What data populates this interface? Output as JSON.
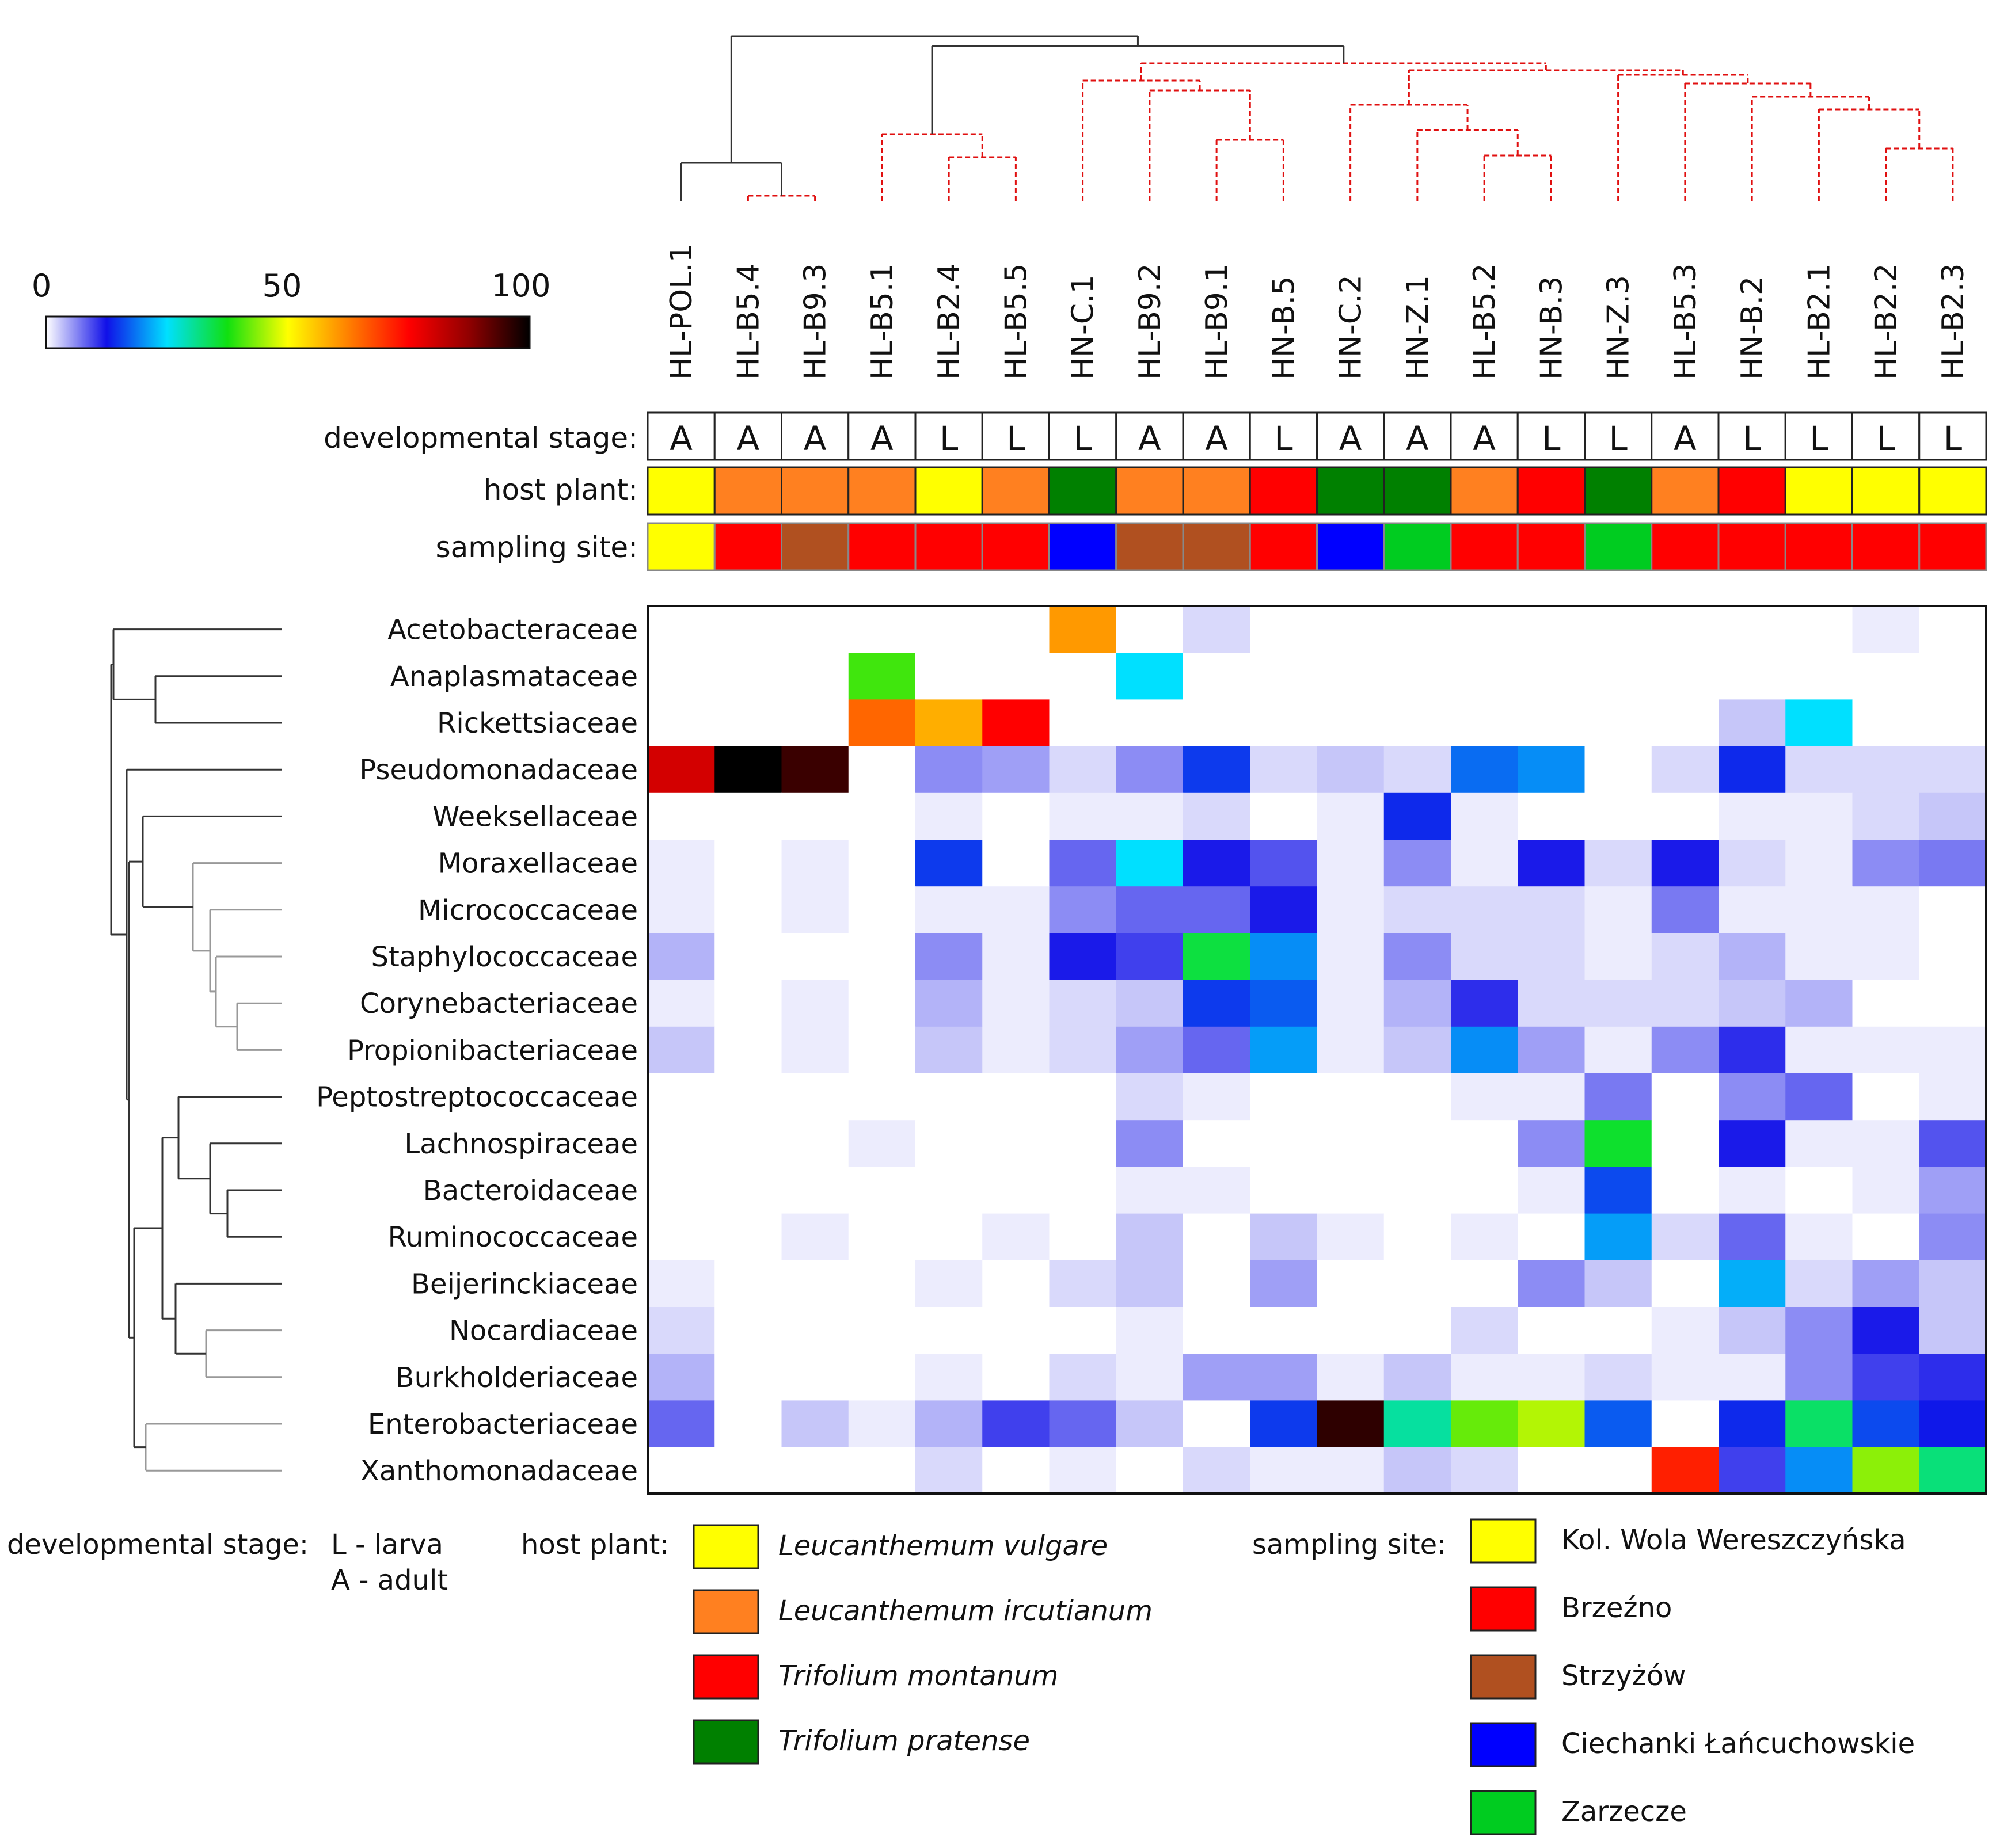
{
  "colors": {
    "scale": [
      "#ffffff",
      "#1010e8",
      "#00e0ff",
      "#10e010",
      "#ffff00",
      "#ff8000",
      "#ff0000",
      "#900000",
      "#000000"
    ],
    "dendrogram_black": "#333333",
    "dendrogram_red": "#e01010",
    "row_dendrogram": "#333333"
  },
  "chart_data": {
    "type": "heatmap",
    "title": "",
    "color_scale": {
      "min": 0,
      "max": 100,
      "tick_labels": [
        "0",
        "50",
        "100"
      ],
      "ticks": [
        0,
        50,
        100
      ]
    },
    "columns": [
      "HL-POL.1",
      "HL-B5.4",
      "HL-B9.3",
      "HL-B5.1",
      "HL-B2.4",
      "HL-B5.5",
      "HN-C.1",
      "HL-B9.2",
      "HL-B9.1",
      "HN-B.5",
      "HN-C.2",
      "HN-Z.1",
      "HL-B5.2",
      "HN-B.3",
      "HN-Z.3",
      "HL-B5.3",
      "HN-B.2",
      "HL-B2.1",
      "HL-B2.2",
      "HL-B2.3"
    ],
    "rows": [
      "Acetobacteraceae",
      "Anaplasmataceae",
      "Rickettsiaceae",
      "Pseudomonadaceae",
      "Weeksellaceae",
      "Moraxellaceae",
      "Micrococcaceae",
      "Staphylococcaceae",
      "Corynebacteriaceae",
      "Propionibacteriaceae",
      "Peptostreptococcaceae",
      "Lachnospiraceae",
      "Bacteroidaceae",
      "Ruminococcaceae",
      "Beijerinckiaceae",
      "Nocardiaceae",
      "Burkholderiaceae",
      "Enterobacteriaceae",
      "Xanthomonadaceae"
    ],
    "values": [
      [
        0,
        0,
        0,
        0,
        0,
        0,
        60,
        0,
        2,
        0,
        0,
        0,
        0,
        0,
        0,
        0,
        0,
        0,
        1,
        0
      ],
      [
        0,
        0,
        0,
        40,
        0,
        0,
        0,
        25,
        0,
        0,
        0,
        0,
        0,
        0,
        0,
        0,
        0,
        0,
        0,
        0
      ],
      [
        0,
        0,
        0,
        65,
        58,
        75,
        0,
        0,
        0,
        0,
        0,
        0,
        0,
        0,
        0,
        0,
        3,
        25,
        0,
        0
      ],
      [
        80,
        100,
        95,
        0,
        6,
        5,
        2,
        6,
        15,
        2,
        3,
        2,
        18,
        20,
        0,
        2,
        14,
        2,
        2,
        2
      ],
      [
        0,
        0,
        0,
        0,
        1,
        0,
        1,
        1,
        2,
        0,
        1,
        14,
        1,
        0,
        0,
        0,
        1,
        1,
        2,
        3
      ],
      [
        1,
        0,
        1,
        0,
        15,
        0,
        8,
        25,
        12,
        9,
        1,
        6,
        1,
        12,
        2,
        12,
        2,
        1,
        6,
        7
      ],
      [
        1,
        0,
        1,
        0,
        1,
        1,
        6,
        8,
        8,
        12,
        1,
        2,
        2,
        2,
        1,
        7,
        1,
        1,
        1,
        0
      ],
      [
        4,
        0,
        0,
        0,
        6,
        1,
        12,
        10,
        35,
        20,
        1,
        6,
        2,
        2,
        1,
        2,
        4,
        1,
        1,
        0
      ],
      [
        1,
        0,
        1,
        0,
        4,
        1,
        2,
        3,
        15,
        17,
        1,
        4,
        11,
        2,
        2,
        2,
        3,
        4,
        0,
        0
      ],
      [
        3,
        0,
        1,
        0,
        3,
        1,
        2,
        5,
        8,
        21,
        1,
        3,
        20,
        5,
        1,
        6,
        11,
        1,
        1,
        1
      ],
      [
        0,
        0,
        0,
        0,
        0,
        0,
        0,
        2,
        1,
        0,
        0,
        0,
        1,
        1,
        7,
        0,
        6,
        8,
        0,
        1
      ],
      [
        0,
        0,
        0,
        1,
        0,
        0,
        0,
        6,
        0,
        0,
        0,
        0,
        0,
        6,
        36,
        0,
        12,
        1,
        1,
        9
      ],
      [
        0,
        0,
        0,
        0,
        0,
        0,
        0,
        1,
        1,
        0,
        0,
        0,
        0,
        1,
        16,
        0,
        1,
        0,
        1,
        5
      ],
      [
        0,
        0,
        1,
        0,
        0,
        1,
        0,
        3,
        0,
        3,
        1,
        0,
        1,
        0,
        21,
        2,
        8,
        1,
        0,
        6
      ],
      [
        1,
        0,
        0,
        0,
        1,
        0,
        2,
        3,
        0,
        5,
        0,
        0,
        0,
        6,
        3,
        0,
        22,
        2,
        5,
        3
      ],
      [
        2,
        0,
        0,
        0,
        0,
        0,
        0,
        1,
        0,
        0,
        0,
        0,
        2,
        0,
        0,
        1,
        3,
        6,
        12,
        3
      ],
      [
        4,
        0,
        0,
        0,
        1,
        0,
        2,
        1,
        5,
        5,
        1,
        3,
        1,
        1,
        2,
        1,
        1,
        6,
        10,
        11
      ],
      [
        8,
        0,
        3,
        1,
        4,
        10,
        8,
        3,
        0,
        15,
        96,
        30,
        42,
        46,
        17,
        0,
        14,
        33,
        16,
        13
      ],
      [
        0,
        0,
        0,
        0,
        2,
        0,
        1,
        0,
        2,
        1,
        1,
        3,
        2,
        0,
        0,
        72,
        10,
        20,
        44,
        32
      ]
    ],
    "annotation_rows": {
      "labels": {
        "stage": "developmental stage:",
        "host": "host plant:",
        "site": "sampling site:"
      },
      "developmental_stage": [
        "A",
        "A",
        "A",
        "A",
        "L",
        "L",
        "L",
        "A",
        "A",
        "L",
        "A",
        "A",
        "A",
        "L",
        "L",
        "A",
        "L",
        "L",
        "L",
        "L"
      ],
      "host_plant": [
        "Leucanthemum vulgare",
        "Leucanthemum ircutianum",
        "Leucanthemum ircutianum",
        "Leucanthemum ircutianum",
        "Leucanthemum vulgare",
        "Leucanthemum ircutianum",
        "Trifolium pratense",
        "Leucanthemum ircutianum",
        "Leucanthemum ircutianum",
        "Trifolium montanum",
        "Trifolium pratense",
        "Trifolium pratense",
        "Leucanthemum ircutianum",
        "Trifolium montanum",
        "Trifolium pratense",
        "Leucanthemum ircutianum",
        "Trifolium montanum",
        "Leucanthemum vulgare",
        "Leucanthemum vulgare",
        "Leucanthemum vulgare"
      ],
      "sampling_site": [
        "Kol. Wola Wereszczyńska",
        "Brzeźno",
        "Strzyżów",
        "Brzeźno",
        "Brzeźno",
        "Brzeźno",
        "Ciechanki Łańcuchowskie",
        "Strzyżów",
        "Strzyżów",
        "Brzeźno",
        "Ciechanki Łańcuchowskie",
        "Zarzecze",
        "Brzeźno",
        "Brzeźno",
        "Zarzecze",
        "Brzeźno",
        "Brzeźno",
        "Brzeźno",
        "Brzeźno",
        "Brzeźno"
      ]
    },
    "legend": {
      "stage_title": "developmental stage:",
      "stage_items": [
        "L - larva",
        "A - adult"
      ],
      "host_title": "host plant:",
      "host_items": [
        {
          "name": "Leucanthemum vulgare",
          "color": "#ffff00"
        },
        {
          "name": "Leucanthemum ircutianum",
          "color": "#ff8020"
        },
        {
          "name": "Trifolium montanum",
          "color": "#ff0000"
        },
        {
          "name": "Trifolium pratense",
          "color": "#008000"
        }
      ],
      "site_title": "sampling site:",
      "site_items": [
        {
          "name": "Kol. Wola Wereszczyńska",
          "color": "#ffff00"
        },
        {
          "name": "Brzeźno",
          "color": "#ff0000"
        },
        {
          "name": "Strzyżów",
          "color": "#b05020"
        },
        {
          "name": "Ciechanki Łańcuchowskie",
          "color": "#0000ff"
        },
        {
          "name": "Zarzecze",
          "color": "#00cc20"
        }
      ]
    },
    "column_dendrogram": {
      "note": "hierarchical clustering of samples; red dashed links = non-significant branches",
      "merges": [
        {
          "a": "HL-B5.4",
          "b": "HL-B9.3",
          "style": "red"
        },
        {
          "a": "HL-POL.1",
          "b": "[HL-B5.4,HL-B9.3]",
          "style": "black"
        },
        {
          "a": "HL-B2.4",
          "b": "HL-B5.5",
          "style": "red"
        },
        {
          "a": "HL-B5.1",
          "b": "[HL-B2.4,HL-B5.5]",
          "style": "red"
        },
        {
          "a": "HL-B9.1",
          "b": "HN-B.5",
          "style": "red"
        },
        {
          "a": "HL-B9.2",
          "b": "[HL-B9.1,HN-B.5]",
          "style": "red"
        },
        {
          "a": "HN-C.1",
          "b": "[HL-B9.2,...]",
          "style": "red"
        },
        {
          "a": "HL-B5.2",
          "b": "HN-B.3",
          "style": "red"
        },
        {
          "a": "HN-Z.1",
          "b": "[HL-B5.2,HN-B.3]",
          "style": "red"
        },
        {
          "a": "HN-C.2",
          "b": "[HN-Z.1,...]",
          "style": "red"
        },
        {
          "a": "HL-B2.2",
          "b": "HL-B2.3",
          "style": "red"
        },
        {
          "a": "HL-B2.1",
          "b": "[HL-B2.2,HL-B2.3]",
          "style": "red"
        },
        {
          "a": "HN-B.2",
          "b": "[HL-B2.1,...]",
          "style": "red"
        },
        {
          "a": "HL-B5.3",
          "b": "[HN-B.2,...]",
          "style": "red"
        },
        {
          "a": "HN-Z.3",
          "b": "[HL-B5.3,...]",
          "style": "red"
        }
      ]
    }
  }
}
